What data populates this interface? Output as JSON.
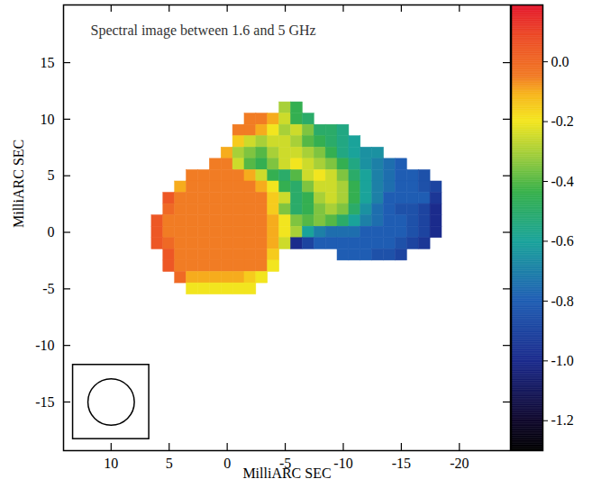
{
  "chart_data": {
    "type": "heatmap",
    "title": "Spectral image between 1.6 and 5 GHz",
    "x_label": "MilliARC SEC",
    "y_label": "MilliARC SEC",
    "xlim": [
      14.1,
      -24.4
    ],
    "ylim": [
      -19.3,
      20.1
    ],
    "xticks": [
      10,
      5,
      0,
      -5,
      -10,
      -15,
      -20
    ],
    "yticks": [
      15,
      10,
      5,
      0,
      -5,
      -10,
      -15
    ],
    "x": [
      6,
      5,
      4,
      3,
      2,
      1,
      0,
      -1,
      -2,
      -3,
      -4,
      -5,
      -6,
      -7,
      -8,
      -9,
      -10,
      -11,
      -12,
      -13,
      -14,
      -15,
      -16,
      -17,
      -18
    ],
    "y": [
      11,
      10,
      9,
      8,
      7,
      6,
      5,
      4,
      3,
      2,
      1,
      0,
      -1,
      -2,
      -3,
      -4,
      -5
    ],
    "values": [
      [
        null,
        null,
        null,
        null,
        null,
        null,
        null,
        null,
        null,
        null,
        null,
        -0.3,
        -0.45,
        null,
        null,
        null,
        null,
        null,
        null,
        null,
        null,
        null,
        null,
        null,
        null
      ],
      [
        null,
        null,
        null,
        null,
        null,
        null,
        null,
        null,
        -0.05,
        -0.05,
        -0.1,
        -0.25,
        -0.45,
        -0.5,
        null,
        null,
        null,
        null,
        null,
        null,
        null,
        null,
        null,
        null,
        null
      ],
      [
        null,
        null,
        null,
        null,
        null,
        null,
        null,
        -0.05,
        -0.05,
        -0.1,
        -0.2,
        -0.3,
        -0.25,
        -0.35,
        -0.5,
        -0.5,
        -0.55,
        null,
        null,
        null,
        null,
        null,
        null,
        null,
        null
      ],
      [
        null,
        null,
        null,
        null,
        null,
        null,
        null,
        -0.15,
        -0.25,
        -0.3,
        -0.25,
        -0.25,
        -0.3,
        -0.4,
        -0.45,
        -0.5,
        -0.55,
        -0.6,
        null,
        null,
        null,
        null,
        null,
        null,
        null
      ],
      [
        null,
        null,
        null,
        null,
        null,
        null,
        -0.1,
        -0.3,
        -0.35,
        -0.4,
        -0.3,
        -0.25,
        -0.25,
        -0.3,
        -0.35,
        -0.45,
        -0.55,
        -0.6,
        -0.65,
        -0.65,
        null,
        null,
        null,
        null,
        null
      ],
      [
        null,
        null,
        null,
        null,
        null,
        -0.05,
        -0.05,
        -0.25,
        -0.4,
        -0.45,
        -0.35,
        -0.25,
        -0.2,
        -0.25,
        -0.3,
        -0.35,
        -0.45,
        -0.55,
        -0.65,
        -0.7,
        -0.75,
        -0.8,
        null,
        null,
        null
      ],
      [
        null,
        null,
        null,
        -0.05,
        -0.05,
        -0.05,
        -0.05,
        -0.05,
        -0.1,
        -0.25,
        -0.45,
        -0.5,
        -0.4,
        -0.25,
        -0.2,
        -0.25,
        -0.35,
        -0.5,
        -0.6,
        -0.7,
        -0.75,
        -0.8,
        -0.8,
        -0.85,
        null
      ],
      [
        null,
        null,
        -0.1,
        -0.05,
        -0.05,
        -0.05,
        -0.05,
        -0.05,
        -0.05,
        -0.1,
        -0.2,
        -0.45,
        -0.5,
        -0.35,
        -0.25,
        -0.25,
        -0.3,
        -0.45,
        -0.6,
        -0.7,
        -0.75,
        -0.8,
        -0.8,
        -0.85,
        -0.9
      ],
      [
        null,
        0.05,
        -0.05,
        -0.05,
        -0.05,
        -0.05,
        -0.05,
        -0.05,
        -0.05,
        -0.05,
        -0.15,
        -0.25,
        -0.5,
        -0.45,
        -0.3,
        -0.25,
        -0.3,
        -0.45,
        -0.6,
        -0.7,
        -0.8,
        -0.8,
        -0.8,
        -0.8,
        -0.95
      ],
      [
        null,
        0,
        -0.05,
        -0.05,
        -0.05,
        -0.05,
        -0.05,
        -0.05,
        -0.05,
        -0.05,
        -0.15,
        -0.35,
        -0.5,
        -0.45,
        -0.35,
        -0.3,
        -0.35,
        -0.5,
        -0.65,
        -0.75,
        -0.8,
        -0.85,
        -0.85,
        -0.9,
        -1
      ],
      [
        0.05,
        -0.05,
        -0.05,
        -0.05,
        -0.05,
        -0.05,
        -0.05,
        -0.05,
        -0.05,
        -0.05,
        -0.1,
        -0.2,
        -0.35,
        -0.4,
        -0.35,
        -0.4,
        -0.5,
        -0.6,
        -0.7,
        -0.75,
        -0.8,
        -0.8,
        -0.85,
        -0.9,
        -1
      ],
      [
        0.05,
        -0.05,
        -0.05,
        -0.05,
        -0.05,
        -0.05,
        -0.05,
        -0.05,
        -0.05,
        -0.05,
        -0.1,
        -0.2,
        -0.3,
        -0.6,
        -0.7,
        -0.75,
        -0.75,
        -0.75,
        -0.8,
        -0.8,
        -0.8,
        -0.8,
        -0.85,
        -0.9,
        -1
      ],
      [
        0.05,
        0,
        -0.05,
        -0.05,
        -0.05,
        -0.05,
        -0.05,
        -0.05,
        -0.05,
        -0.05,
        -0.1,
        -0.25,
        -1,
        -0.9,
        -0.8,
        -0.8,
        -0.8,
        -0.8,
        -0.8,
        -0.8,
        -0.8,
        -0.85,
        -0.9,
        -0.95,
        null
      ],
      [
        null,
        0.05,
        -0.05,
        -0.05,
        -0.05,
        -0.05,
        -0.05,
        -0.05,
        -0.05,
        -0.05,
        -0.15,
        null,
        null,
        null,
        null,
        null,
        -0.8,
        -0.8,
        -0.8,
        -0.85,
        -0.85,
        -0.9,
        null,
        null,
        null
      ],
      [
        null,
        0.05,
        -0.05,
        -0.05,
        -0.05,
        -0.05,
        -0.05,
        -0.05,
        -0.05,
        -0.05,
        -0.2,
        null,
        null,
        null,
        null,
        null,
        null,
        null,
        null,
        null,
        null,
        null,
        null,
        null,
        null
      ],
      [
        null,
        null,
        0,
        -0.1,
        -0.1,
        -0.1,
        -0.1,
        -0.1,
        -0.15,
        -0.2,
        null,
        null,
        null,
        null,
        null,
        null,
        null,
        null,
        null,
        null,
        null,
        null,
        null,
        null,
        null
      ],
      [
        null,
        null,
        null,
        -0.2,
        -0.2,
        -0.2,
        -0.2,
        -0.2,
        -0.2,
        null,
        null,
        null,
        null,
        null,
        null,
        null,
        null,
        null,
        null,
        null,
        null,
        null,
        null,
        null,
        null
      ]
    ],
    "colorbar": {
      "range": [
        -1.3,
        0.19
      ],
      "ticks": [
        {
          "value": 0,
          "label": "0.0"
        },
        -0.2,
        -0.4,
        -0.6,
        -0.8,
        {
          "value": -1,
          "label": "-1.0"
        },
        -1.2
      ]
    },
    "beam": {
      "x": 10,
      "y": -15,
      "diameter": 4
    }
  }
}
